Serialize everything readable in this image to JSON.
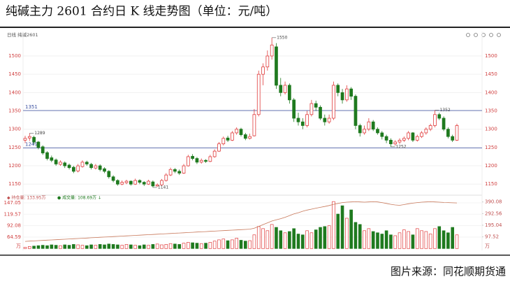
{
  "chart_data": {
    "type": "candlestick",
    "title": "纯碱主力 2601 合约日 K 线走势图（单位：元/吨）",
    "header_label": "日线 纯碱2601",
    "source": "图片来源：同花顺期货通",
    "ylim": [
      1130,
      1560
    ],
    "yticks": [
      1150,
      1200,
      1250,
      1300,
      1350,
      1400,
      1450,
      1500
    ],
    "up_color": "#e03c3c",
    "down_color": "#1f7a1f",
    "ref_lines": [
      {
        "value": 1351,
        "color": "#3a4fa0"
      },
      {
        "value": 1249,
        "color": "#3a4fa0"
      }
    ],
    "extreme_labels": [
      1289,
      1550,
      1141,
      1352,
      1252
    ],
    "ohlc": [
      [
        1270,
        1282,
        1262,
        1275
      ],
      [
        1276,
        1289,
        1268,
        1280
      ],
      [
        1278,
        1282,
        1258,
        1265
      ],
      [
        1265,
        1268,
        1245,
        1250
      ],
      [
        1252,
        1256,
        1230,
        1235
      ],
      [
        1236,
        1240,
        1215,
        1220
      ],
      [
        1222,
        1228,
        1210,
        1215
      ],
      [
        1216,
        1220,
        1200,
        1205
      ],
      [
        1204,
        1215,
        1200,
        1210
      ],
      [
        1208,
        1212,
        1194,
        1200
      ],
      [
        1202,
        1206,
        1190,
        1195
      ],
      [
        1196,
        1200,
        1180,
        1185
      ],
      [
        1186,
        1205,
        1182,
        1200
      ],
      [
        1198,
        1215,
        1195,
        1210
      ],
      [
        1210,
        1214,
        1200,
        1205
      ],
      [
        1204,
        1208,
        1190,
        1195
      ],
      [
        1194,
        1205,
        1190,
        1200
      ],
      [
        1200,
        1204,
        1185,
        1190
      ],
      [
        1192,
        1196,
        1180,
        1185
      ],
      [
        1185,
        1188,
        1165,
        1170
      ],
      [
        1170,
        1174,
        1155,
        1160
      ],
      [
        1160,
        1163,
        1146,
        1150
      ],
      [
        1150,
        1160,
        1147,
        1155
      ],
      [
        1154,
        1162,
        1150,
        1158
      ],
      [
        1158,
        1160,
        1146,
        1150
      ],
      [
        1150,
        1165,
        1148,
        1160
      ],
      [
        1160,
        1163,
        1150,
        1155
      ],
      [
        1155,
        1158,
        1145,
        1150
      ],
      [
        1150,
        1162,
        1148,
        1158
      ],
      [
        1156,
        1160,
        1141,
        1145
      ],
      [
        1145,
        1152,
        1143,
        1148
      ],
      [
        1148,
        1164,
        1146,
        1160
      ],
      [
        1160,
        1180,
        1157,
        1175
      ],
      [
        1175,
        1195,
        1172,
        1190
      ],
      [
        1190,
        1194,
        1180,
        1185
      ],
      [
        1185,
        1190,
        1175,
        1180
      ],
      [
        1180,
        1205,
        1178,
        1200
      ],
      [
        1200,
        1230,
        1198,
        1225
      ],
      [
        1226,
        1232,
        1215,
        1220
      ],
      [
        1220,
        1224,
        1205,
        1210
      ],
      [
        1210,
        1220,
        1206,
        1215
      ],
      [
        1215,
        1218,
        1208,
        1212
      ],
      [
        1212,
        1230,
        1210,
        1225
      ],
      [
        1225,
        1245,
        1222,
        1240
      ],
      [
        1240,
        1265,
        1238,
        1260
      ],
      [
        1260,
        1280,
        1256,
        1275
      ],
      [
        1276,
        1282,
        1265,
        1270
      ],
      [
        1270,
        1295,
        1268,
        1290
      ],
      [
        1290,
        1305,
        1285,
        1300
      ],
      [
        1300,
        1304,
        1280,
        1285
      ],
      [
        1285,
        1290,
        1270,
        1275
      ],
      [
        1275,
        1288,
        1272,
        1280
      ],
      [
        1282,
        1355,
        1280,
        1340
      ],
      [
        1340,
        1460,
        1335,
        1450
      ],
      [
        1450,
        1480,
        1420,
        1470
      ],
      [
        1470,
        1515,
        1460,
        1500
      ],
      [
        1500,
        1550,
        1490,
        1530
      ],
      [
        1525,
        1535,
        1410,
        1420
      ],
      [
        1420,
        1440,
        1390,
        1400
      ],
      [
        1400,
        1430,
        1395,
        1420
      ],
      [
        1420,
        1425,
        1370,
        1380
      ],
      [
        1380,
        1385,
        1320,
        1330
      ],
      [
        1330,
        1345,
        1310,
        1320
      ],
      [
        1320,
        1330,
        1300,
        1310
      ],
      [
        1310,
        1350,
        1305,
        1340
      ],
      [
        1340,
        1380,
        1335,
        1370
      ],
      [
        1370,
        1378,
        1350,
        1360
      ],
      [
        1360,
        1365,
        1325,
        1330
      ],
      [
        1330,
        1340,
        1310,
        1320
      ],
      [
        1320,
        1340,
        1315,
        1330
      ],
      [
        1330,
        1430,
        1325,
        1420
      ],
      [
        1420,
        1425,
        1390,
        1400
      ],
      [
        1400,
        1410,
        1370,
        1380
      ],
      [
        1380,
        1420,
        1375,
        1410
      ],
      [
        1410,
        1415,
        1380,
        1390
      ],
      [
        1390,
        1395,
        1300,
        1310
      ],
      [
        1310,
        1315,
        1280,
        1290
      ],
      [
        1290,
        1310,
        1285,
        1300
      ],
      [
        1300,
        1330,
        1295,
        1320
      ],
      [
        1320,
        1325,
        1295,
        1300
      ],
      [
        1300,
        1305,
        1285,
        1290
      ],
      [
        1290,
        1295,
        1272,
        1280
      ],
      [
        1280,
        1285,
        1262,
        1270
      ],
      [
        1270,
        1275,
        1252,
        1260
      ],
      [
        1260,
        1270,
        1255,
        1265
      ],
      [
        1265,
        1275,
        1260,
        1270
      ],
      [
        1270,
        1280,
        1265,
        1275
      ],
      [
        1275,
        1295,
        1270,
        1290
      ],
      [
        1290,
        1292,
        1265,
        1270
      ],
      [
        1270,
        1285,
        1266,
        1280
      ],
      [
        1280,
        1295,
        1276,
        1290
      ],
      [
        1290,
        1305,
        1285,
        1300
      ],
      [
        1300,
        1315,
        1295,
        1310
      ],
      [
        1310,
        1352,
        1305,
        1340
      ],
      [
        1340,
        1345,
        1325,
        1330
      ],
      [
        1330,
        1335,
        1295,
        1300
      ],
      [
        1300,
        1305,
        1275,
        1280
      ],
      [
        1280,
        1285,
        1265,
        1270
      ],
      [
        1270,
        1315,
        1268,
        1310
      ]
    ],
    "volume_legend": [
      "◆ 持仓量: 133.95万",
      "● 成交量: 108.69万 ↓"
    ],
    "volume": {
      "ylim": [
        37.11,
        152
      ],
      "yticks": [
        147.05,
        119.57,
        92.08,
        64.59
      ],
      "unit": "万",
      "values": [
        40,
        42,
        43,
        44,
        45,
        44,
        46,
        45,
        44,
        46,
        45,
        47,
        46,
        45,
        44,
        46,
        45,
        47,
        46,
        48,
        47,
        46,
        45,
        47,
        46,
        45,
        44,
        46,
        45,
        47,
        48,
        46,
        47,
        49,
        48,
        47,
        50,
        52,
        51,
        50,
        49,
        50,
        52,
        55,
        58,
        60,
        56,
        58,
        62,
        57,
        55,
        56,
        70,
        90,
        85,
        80,
        95,
        88,
        80,
        75,
        78,
        85,
        72,
        70,
        80,
        75,
        82,
        88,
        90,
        92,
        150,
        120,
        140,
        110,
        130,
        100,
        95,
        80,
        85,
        78,
        75,
        72,
        80,
        70,
        68,
        75,
        82,
        78,
        70,
        85,
        80,
        78,
        72,
        85,
        90,
        80,
        75,
        88,
        70
      ]
    },
    "open_interest": {
      "color": "#c8785a",
      "y2lim": [
        0,
        400
      ],
      "y2ticks": [
        390.08,
        292.56,
        195.04,
        97.52
      ],
      "unit": "万",
      "values": [
        60,
        62,
        64,
        66,
        68,
        70,
        72,
        74,
        76,
        78,
        80,
        82,
        84,
        86,
        88,
        90,
        92,
        94,
        96,
        98,
        100,
        102,
        104,
        106,
        108,
        110,
        112,
        114,
        116,
        118,
        120,
        122,
        124,
        126,
        128,
        130,
        132,
        134,
        136,
        138,
        140,
        142,
        144,
        146,
        148,
        150,
        152,
        154,
        156,
        158,
        160,
        162,
        170,
        185,
        200,
        215,
        230,
        240,
        250,
        262,
        275,
        290,
        300,
        312,
        322,
        330,
        338,
        345,
        352,
        360,
        370,
        378,
        385,
        388,
        390,
        392,
        390,
        388,
        390,
        392,
        390,
        385,
        378,
        370,
        365,
        362,
        368,
        375,
        380,
        385,
        388,
        390,
        392,
        390,
        388,
        386,
        385,
        383,
        382
      ]
    }
  }
}
